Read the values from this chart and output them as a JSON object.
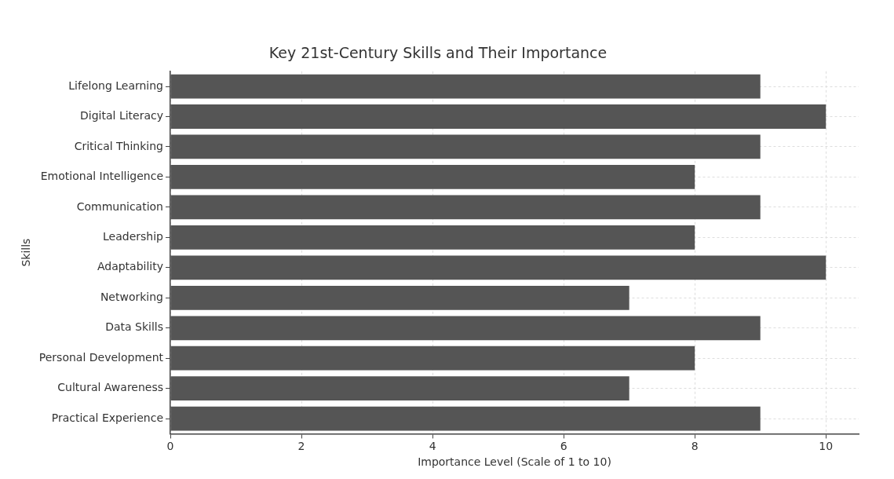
{
  "chart_data": {
    "type": "bar",
    "orientation": "horizontal",
    "title": "Key 21st-Century Skills and Their Importance",
    "xlabel": "Importance Level (Scale of 1 to 10)",
    "ylabel": "Skills",
    "categories": [
      "Lifelong Learning",
      "Digital Literacy",
      "Critical Thinking",
      "Emotional Intelligence",
      "Communication",
      "Leadership",
      "Adaptability",
      "Networking",
      "Data Skills",
      "Personal Development",
      "Cultural Awareness",
      "Practical Experience"
    ],
    "values": [
      9,
      10,
      9,
      8,
      9,
      8,
      10,
      7,
      9,
      8,
      7,
      9
    ],
    "color": "#555555",
    "xlim": [
      0,
      10.5
    ],
    "xticks": [
      0,
      2,
      4,
      6,
      8,
      10
    ],
    "grid": true,
    "legend": false
  }
}
